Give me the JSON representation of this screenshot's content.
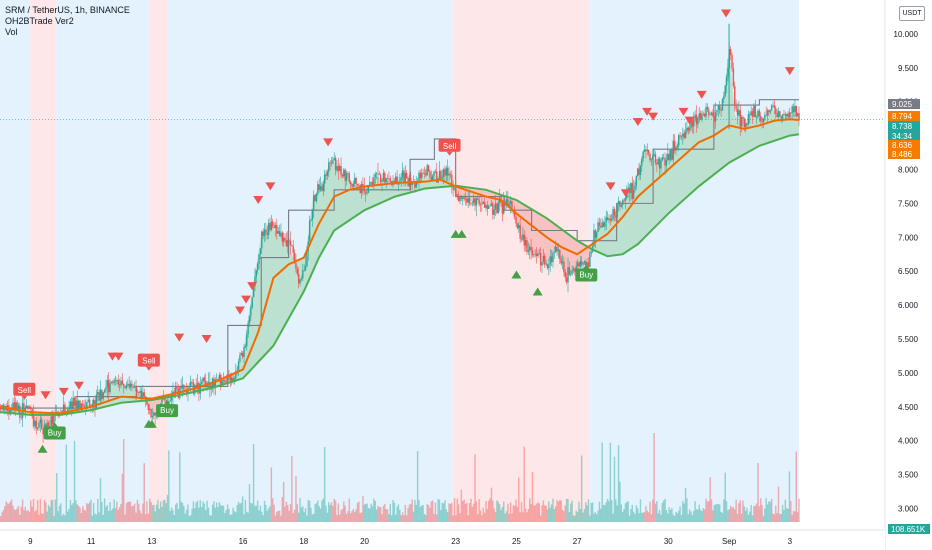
{
  "header": {
    "symbol_line": "SRM / TetherUS, 1h, BINANCE",
    "indicator": "OH2BTrade Ver2",
    "volume_label": "Vol",
    "currency": "USDT"
  },
  "chart_data": {
    "type": "candlestick",
    "y_ticks": [
      "10.000",
      "9.500",
      "9.000",
      "8.500",
      "8.000",
      "7.500",
      "7.000",
      "6.500",
      "6.000",
      "5.500",
      "5.000",
      "4.500",
      "4.000",
      "3.500",
      "3.000"
    ],
    "y_tick_values": [
      10.0,
      9.5,
      9.0,
      8.5,
      8.0,
      7.5,
      7.0,
      6.5,
      6.0,
      5.5,
      5.0,
      4.5,
      4.0,
      3.5,
      3.0
    ],
    "ylim": [
      2.8,
      10.5
    ],
    "x_ticks": [
      "9",
      "11",
      "13",
      "16",
      "18",
      "20",
      "23",
      "25",
      "27",
      "30",
      "Sep",
      "3"
    ],
    "x_tick_days": [
      9,
      11,
      13,
      16,
      18,
      20,
      23,
      25,
      27,
      30,
      32,
      34
    ],
    "xlim": [
      8.0,
      34.5
    ],
    "price": [
      [
        8.0,
        4.48
      ],
      [
        8.5,
        4.46
      ],
      [
        9.0,
        4.4
      ],
      [
        9.2,
        4.22
      ],
      [
        9.5,
        4.18
      ],
      [
        9.8,
        4.35
      ],
      [
        10.0,
        4.45
      ],
      [
        10.5,
        4.58
      ],
      [
        11.0,
        4.52
      ],
      [
        11.4,
        4.7
      ],
      [
        11.8,
        4.95
      ],
      [
        12.0,
        4.85
      ],
      [
        12.5,
        4.75
      ],
      [
        12.8,
        4.55
      ],
      [
        13.0,
        4.38
      ],
      [
        13.3,
        4.55
      ],
      [
        13.8,
        4.72
      ],
      [
        14.5,
        4.8
      ],
      [
        15.2,
        4.9
      ],
      [
        15.7,
        4.96
      ],
      [
        16.0,
        5.3
      ],
      [
        16.3,
        6.2
      ],
      [
        16.6,
        7.05
      ],
      [
        16.9,
        7.2
      ],
      [
        17.2,
        7.0
      ],
      [
        17.5,
        6.95
      ],
      [
        17.8,
        6.4
      ],
      [
        18.0,
        6.5
      ],
      [
        18.3,
        7.6
      ],
      [
        18.6,
        7.8
      ],
      [
        18.9,
        8.15
      ],
      [
        19.2,
        8.0
      ],
      [
        19.6,
        7.8
      ],
      [
        20.0,
        7.7
      ],
      [
        20.4,
        7.9
      ],
      [
        20.8,
        7.82
      ],
      [
        21.2,
        7.9
      ],
      [
        21.6,
        7.75
      ],
      [
        22.0,
        8.0
      ],
      [
        22.4,
        7.9
      ],
      [
        22.8,
        7.95
      ],
      [
        23.0,
        7.6
      ],
      [
        23.3,
        7.55
      ],
      [
        23.8,
        7.5
      ],
      [
        24.3,
        7.45
      ],
      [
        24.7,
        7.5
      ],
      [
        25.0,
        7.2
      ],
      [
        25.3,
        6.85
      ],
      [
        25.6,
        6.75
      ],
      [
        26.0,
        6.6
      ],
      [
        26.3,
        6.85
      ],
      [
        26.6,
        6.4
      ],
      [
        27.0,
        6.55
      ],
      [
        27.3,
        6.6
      ],
      [
        27.6,
        7.1
      ],
      [
        28.0,
        7.25
      ],
      [
        28.4,
        7.5
      ],
      [
        28.8,
        7.7
      ],
      [
        29.2,
        8.3
      ],
      [
        29.6,
        8.1
      ],
      [
        30.0,
        8.2
      ],
      [
        30.4,
        8.5
      ],
      [
        30.8,
        8.7
      ],
      [
        31.2,
        8.9
      ],
      [
        31.5,
        8.75
      ],
      [
        31.8,
        9.0
      ],
      [
        32.0,
        9.8
      ],
      [
        32.2,
        8.8
      ],
      [
        32.5,
        8.65
      ],
      [
        32.8,
        8.9
      ],
      [
        33.1,
        8.75
      ],
      [
        33.4,
        8.9
      ],
      [
        33.7,
        8.8
      ],
      [
        34.0,
        8.85
      ],
      [
        34.3,
        8.78
      ]
    ],
    "ema_fast": [
      [
        8.0,
        4.5
      ],
      [
        9.0,
        4.42
      ],
      [
        10.0,
        4.4
      ],
      [
        11.0,
        4.5
      ],
      [
        12.0,
        4.65
      ],
      [
        13.0,
        4.62
      ],
      [
        14.0,
        4.72
      ],
      [
        15.0,
        4.85
      ],
      [
        16.0,
        5.05
      ],
      [
        16.5,
        5.6
      ],
      [
        17.0,
        6.4
      ],
      [
        17.5,
        6.6
      ],
      [
        18.0,
        6.7
      ],
      [
        18.5,
        7.2
      ],
      [
        19.0,
        7.6
      ],
      [
        19.5,
        7.7
      ],
      [
        20.0,
        7.75
      ],
      [
        21.0,
        7.8
      ],
      [
        22.0,
        7.82
      ],
      [
        22.5,
        7.85
      ],
      [
        23.0,
        7.75
      ],
      [
        24.0,
        7.6
      ],
      [
        24.5,
        7.55
      ],
      [
        25.0,
        7.35
      ],
      [
        26.0,
        7.0
      ],
      [
        26.5,
        6.85
      ],
      [
        27.0,
        6.75
      ],
      [
        27.5,
        6.9
      ],
      [
        28.0,
        7.05
      ],
      [
        28.5,
        7.3
      ],
      [
        29.0,
        7.6
      ],
      [
        29.5,
        7.8
      ],
      [
        30.0,
        8.0
      ],
      [
        30.5,
        8.2
      ],
      [
        31.0,
        8.4
      ],
      [
        31.5,
        8.5
      ],
      [
        32.0,
        8.65
      ],
      [
        32.5,
        8.6
      ],
      [
        33.0,
        8.65
      ],
      [
        33.5,
        8.72
      ],
      [
        34.0,
        8.74
      ],
      [
        34.3,
        8.73
      ]
    ],
    "ema_slow": [
      [
        8.0,
        4.42
      ],
      [
        9.0,
        4.38
      ],
      [
        10.0,
        4.38
      ],
      [
        11.0,
        4.45
      ],
      [
        12.0,
        4.56
      ],
      [
        13.0,
        4.6
      ],
      [
        14.0,
        4.68
      ],
      [
        15.0,
        4.78
      ],
      [
        16.0,
        4.92
      ],
      [
        17.0,
        5.4
      ],
      [
        17.5,
        5.8
      ],
      [
        18.0,
        6.2
      ],
      [
        18.5,
        6.7
      ],
      [
        19.0,
        7.1
      ],
      [
        20.0,
        7.4
      ],
      [
        21.0,
        7.6
      ],
      [
        22.0,
        7.72
      ],
      [
        23.0,
        7.76
      ],
      [
        24.0,
        7.7
      ],
      [
        25.0,
        7.55
      ],
      [
        26.0,
        7.28
      ],
      [
        27.0,
        6.95
      ],
      [
        27.5,
        6.82
      ],
      [
        28.0,
        6.72
      ],
      [
        28.5,
        6.75
      ],
      [
        29.0,
        6.9
      ],
      [
        30.0,
        7.35
      ],
      [
        31.0,
        7.75
      ],
      [
        32.0,
        8.1
      ],
      [
        33.0,
        8.35
      ],
      [
        34.0,
        8.5
      ],
      [
        34.3,
        8.52
      ]
    ],
    "step_line": [
      [
        8.0,
        4.48
      ],
      [
        10.5,
        4.48
      ],
      [
        10.5,
        4.65
      ],
      [
        12.5,
        4.65
      ],
      [
        12.5,
        4.8
      ],
      [
        15.5,
        4.8
      ],
      [
        15.5,
        5.7
      ],
      [
        16.6,
        5.7
      ],
      [
        16.6,
        6.7
      ],
      [
        17.5,
        6.7
      ],
      [
        17.5,
        7.4
      ],
      [
        19.0,
        7.4
      ],
      [
        19.0,
        7.7
      ],
      [
        21.5,
        7.7
      ],
      [
        21.5,
        8.15
      ],
      [
        22.3,
        8.15
      ],
      [
        22.3,
        8.45
      ],
      [
        23.0,
        8.45
      ],
      [
        23.0,
        7.6
      ],
      [
        24.6,
        7.6
      ],
      [
        24.6,
        7.4
      ],
      [
        25.5,
        7.4
      ],
      [
        25.5,
        7.1
      ],
      [
        27.0,
        7.1
      ],
      [
        27.0,
        6.95
      ],
      [
        28.3,
        6.95
      ],
      [
        28.3,
        7.5
      ],
      [
        29.5,
        7.5
      ],
      [
        29.5,
        8.3
      ],
      [
        31.5,
        8.3
      ],
      [
        31.5,
        8.95
      ],
      [
        33.0,
        8.95
      ],
      [
        33.0,
        9.03
      ],
      [
        34.3,
        9.03
      ]
    ],
    "band_regions": [
      {
        "from": 8.0,
        "to": 9.0,
        "color": "blue"
      },
      {
        "from": 9.0,
        "to": 9.85,
        "color": "red"
      },
      {
        "from": 9.85,
        "to": 12.9,
        "color": "blue"
      },
      {
        "from": 12.9,
        "to": 13.5,
        "color": "red"
      },
      {
        "from": 13.5,
        "to": 22.9,
        "color": "blue"
      },
      {
        "from": 22.9,
        "to": 27.4,
        "color": "red"
      },
      {
        "from": 27.4,
        "to": 34.3,
        "color": "blue"
      }
    ],
    "signals": [
      {
        "type": "sell",
        "day": 8.8,
        "price": 4.75,
        "label": "Sell"
      },
      {
        "type": "buy",
        "day": 9.8,
        "price": 4.12,
        "label": "Buy"
      },
      {
        "type": "sell",
        "day": 12.9,
        "price": 5.18,
        "label": "Sell"
      },
      {
        "type": "buy",
        "day": 13.5,
        "price": 4.45,
        "label": "Buy"
      },
      {
        "type": "sell",
        "day": 22.8,
        "price": 8.35,
        "label": "Sell"
      },
      {
        "type": "buy",
        "day": 27.3,
        "price": 6.45,
        "label": "Buy"
      }
    ],
    "sell_arrows": [
      [
        9.5,
        4.67
      ],
      [
        10.1,
        4.72
      ],
      [
        10.6,
        4.81
      ],
      [
        11.7,
        5.24
      ],
      [
        11.9,
        5.24
      ],
      [
        13.9,
        5.52
      ],
      [
        14.8,
        5.5
      ],
      [
        15.9,
        5.92
      ],
      [
        16.1,
        6.08
      ],
      [
        16.3,
        6.28
      ],
      [
        16.5,
        7.55
      ],
      [
        16.9,
        7.75
      ],
      [
        18.8,
        8.4
      ],
      [
        28.1,
        7.75
      ],
      [
        28.6,
        7.65
      ],
      [
        29.0,
        8.7
      ],
      [
        29.3,
        8.85
      ],
      [
        29.5,
        8.78
      ],
      [
        30.5,
        8.85
      ],
      [
        30.7,
        8.72
      ],
      [
        31.1,
        9.1
      ],
      [
        31.9,
        10.3
      ],
      [
        34.0,
        9.45
      ]
    ],
    "buy_arrows": [
      [
        9.4,
        3.88
      ],
      [
        12.9,
        4.25
      ],
      [
        13.0,
        4.25
      ],
      [
        23.0,
        7.05
      ],
      [
        23.2,
        7.05
      ],
      [
        25.0,
        6.45
      ],
      [
        25.7,
        6.2
      ]
    ],
    "price_tags": [
      {
        "price": 9.025,
        "label": "9.025",
        "color": "#787b86"
      },
      {
        "price": 8.794,
        "label": "8.794",
        "color": "#f57c00"
      },
      {
        "price": 8.738,
        "label": "8.738",
        "color": "#26a69a"
      },
      {
        "price": 8.66,
        "label": "34:34",
        "color": "#26a69a"
      },
      {
        "price": 8.636,
        "label": "8.636",
        "color": "#f57c00"
      },
      {
        "price": 8.486,
        "label": "8.486",
        "color": "#f57c00"
      }
    ],
    "volume_tag": "108.651K",
    "colors": {
      "up": "#26a69a",
      "down": "#ef5350",
      "ema_fast": "#ef6c00",
      "ema_slow": "#4caf50",
      "step": "#787b86",
      "band_blue": "#e3f2fd",
      "band_red": "#fde7e9",
      "fill_green": "rgba(76,175,80,0.25)",
      "fill_red": "rgba(239,83,80,0.25)"
    }
  }
}
